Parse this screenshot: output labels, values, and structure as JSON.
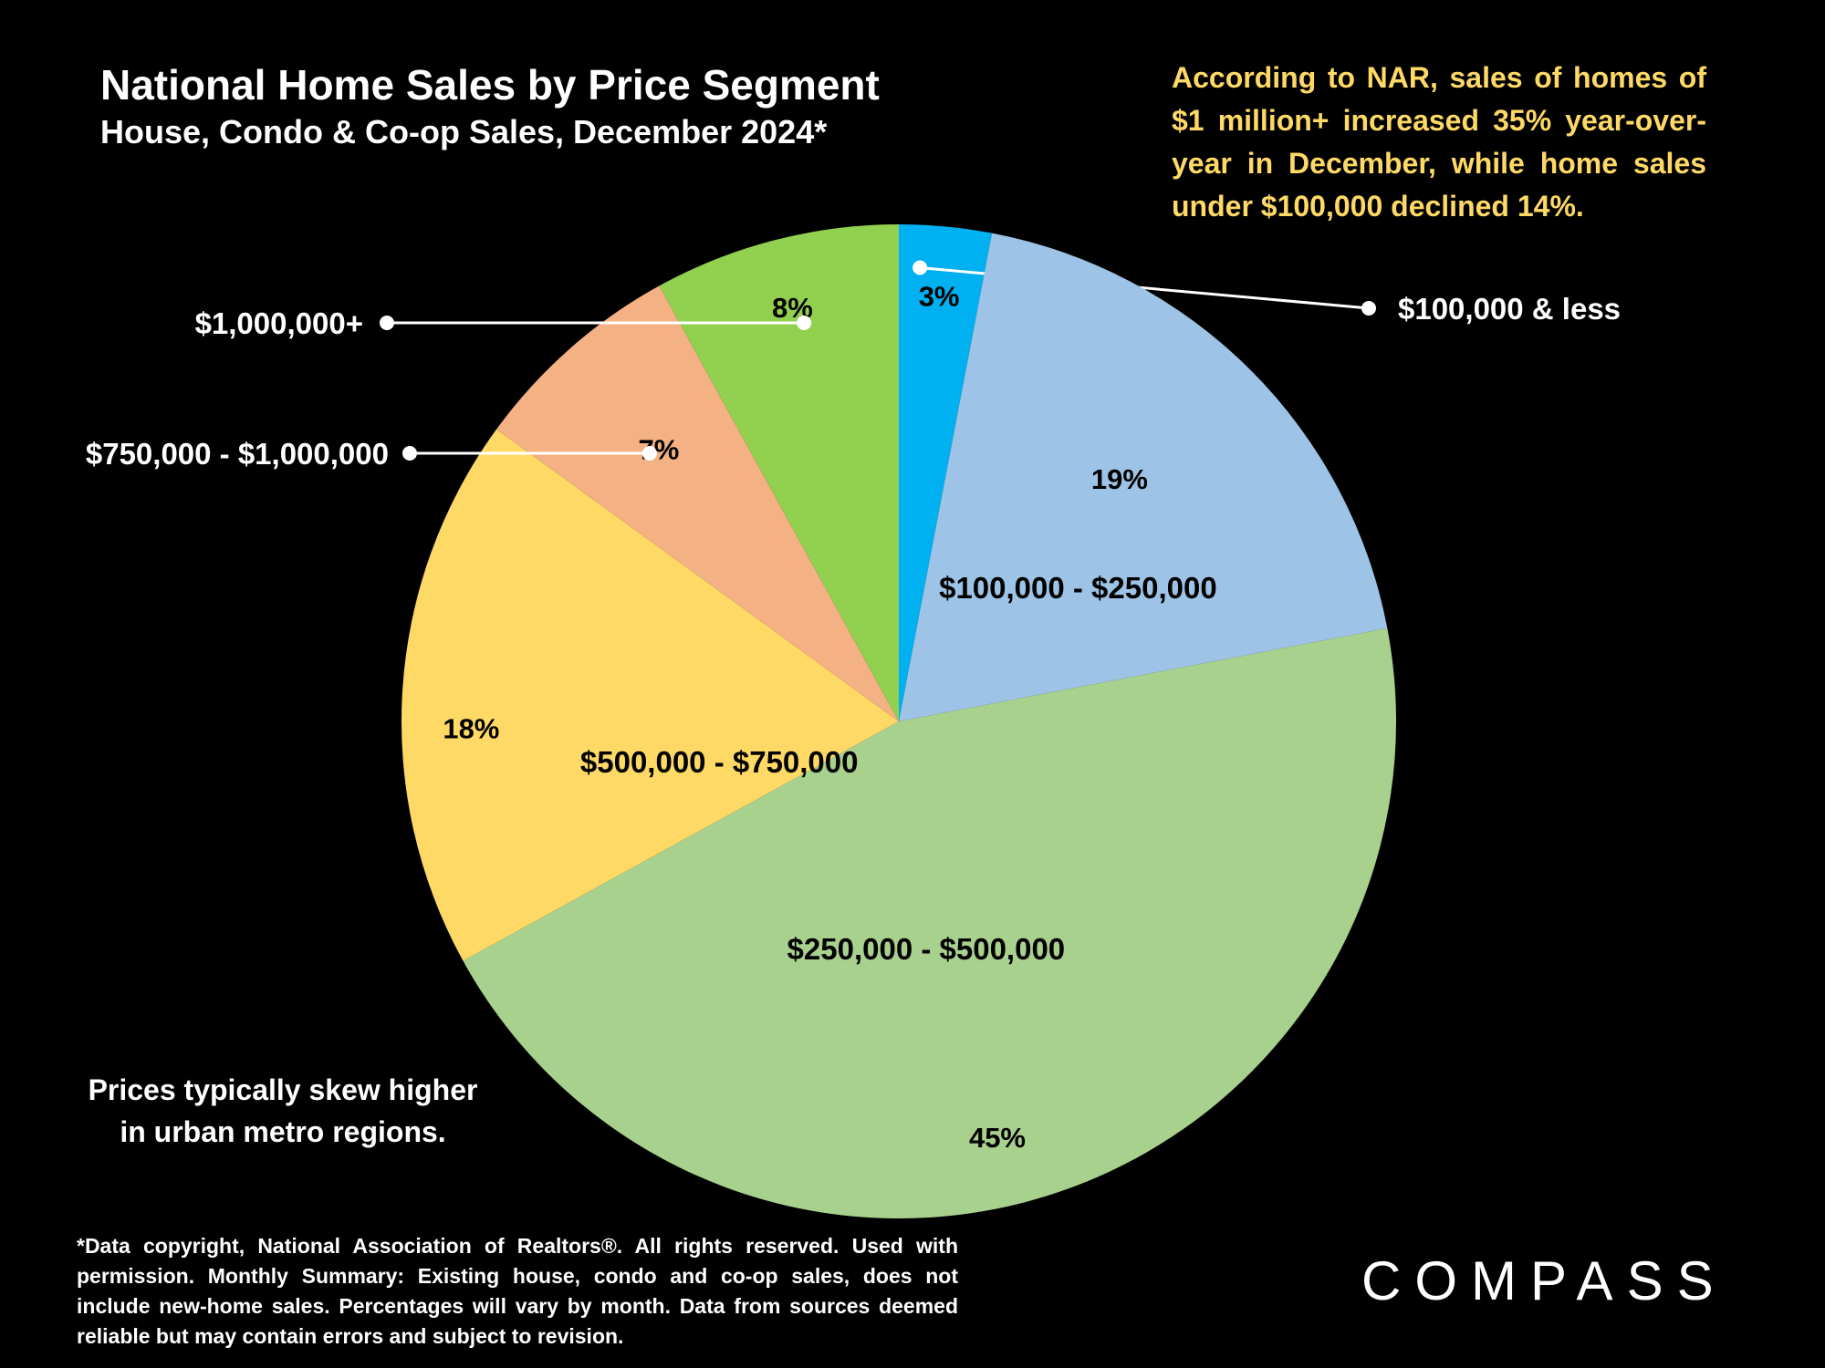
{
  "header": {
    "title": "National Home Sales by Price Segment",
    "subtitle": "House, Condo & Co-op Sales, December 2024*"
  },
  "callout": "According to NAR, sales of homes of $1 million+ increased 35% year-over-year in December, while home sales under $100,000 declined 14%.",
  "note": {
    "line1": "Prices typically skew higher",
    "line2": "in urban metro regions."
  },
  "footnote": "*Data copyright, National Association of Realtors®. All rights reserved. Used with permission. Monthly Summary:  Existing house, condo and co-op sales, does not include new-home sales. Percentages will vary by month. Data from sources deemed reliable but may contain errors and subject to revision.",
  "brand": {
    "logo_text": "COMPASS"
  },
  "chart_data": {
    "type": "pie",
    "title": "National Home Sales by Price Segment",
    "start_angle": "12 o'clock",
    "direction": "clockwise",
    "slices": [
      {
        "label": "$100,000 & less",
        "value": 3,
        "value_label": "3%",
        "color": "#00B0F0"
      },
      {
        "label": "$100,000 - $250,000",
        "value": 19,
        "value_label": "19%",
        "color": "#9DC3E6"
      },
      {
        "label": "$250,000 - $500,000",
        "value": 45,
        "value_label": "45%",
        "color": "#A9D18E"
      },
      {
        "label": "$500,000 - $750,000",
        "value": 18,
        "value_label": "18%",
        "color": "#FFD966"
      },
      {
        "label": "$750,000 - $1,000,000",
        "value": 7,
        "value_label": "7%",
        "color": "#F4B183"
      },
      {
        "label": "$1,000,000+",
        "value": 8,
        "value_label": "8%",
        "color": "#92D050"
      }
    ]
  },
  "colors": {
    "background": "#000000",
    "callout_text": "#FFD966",
    "label_text": "#000000",
    "outside_label_text": "#FFFFFF"
  }
}
